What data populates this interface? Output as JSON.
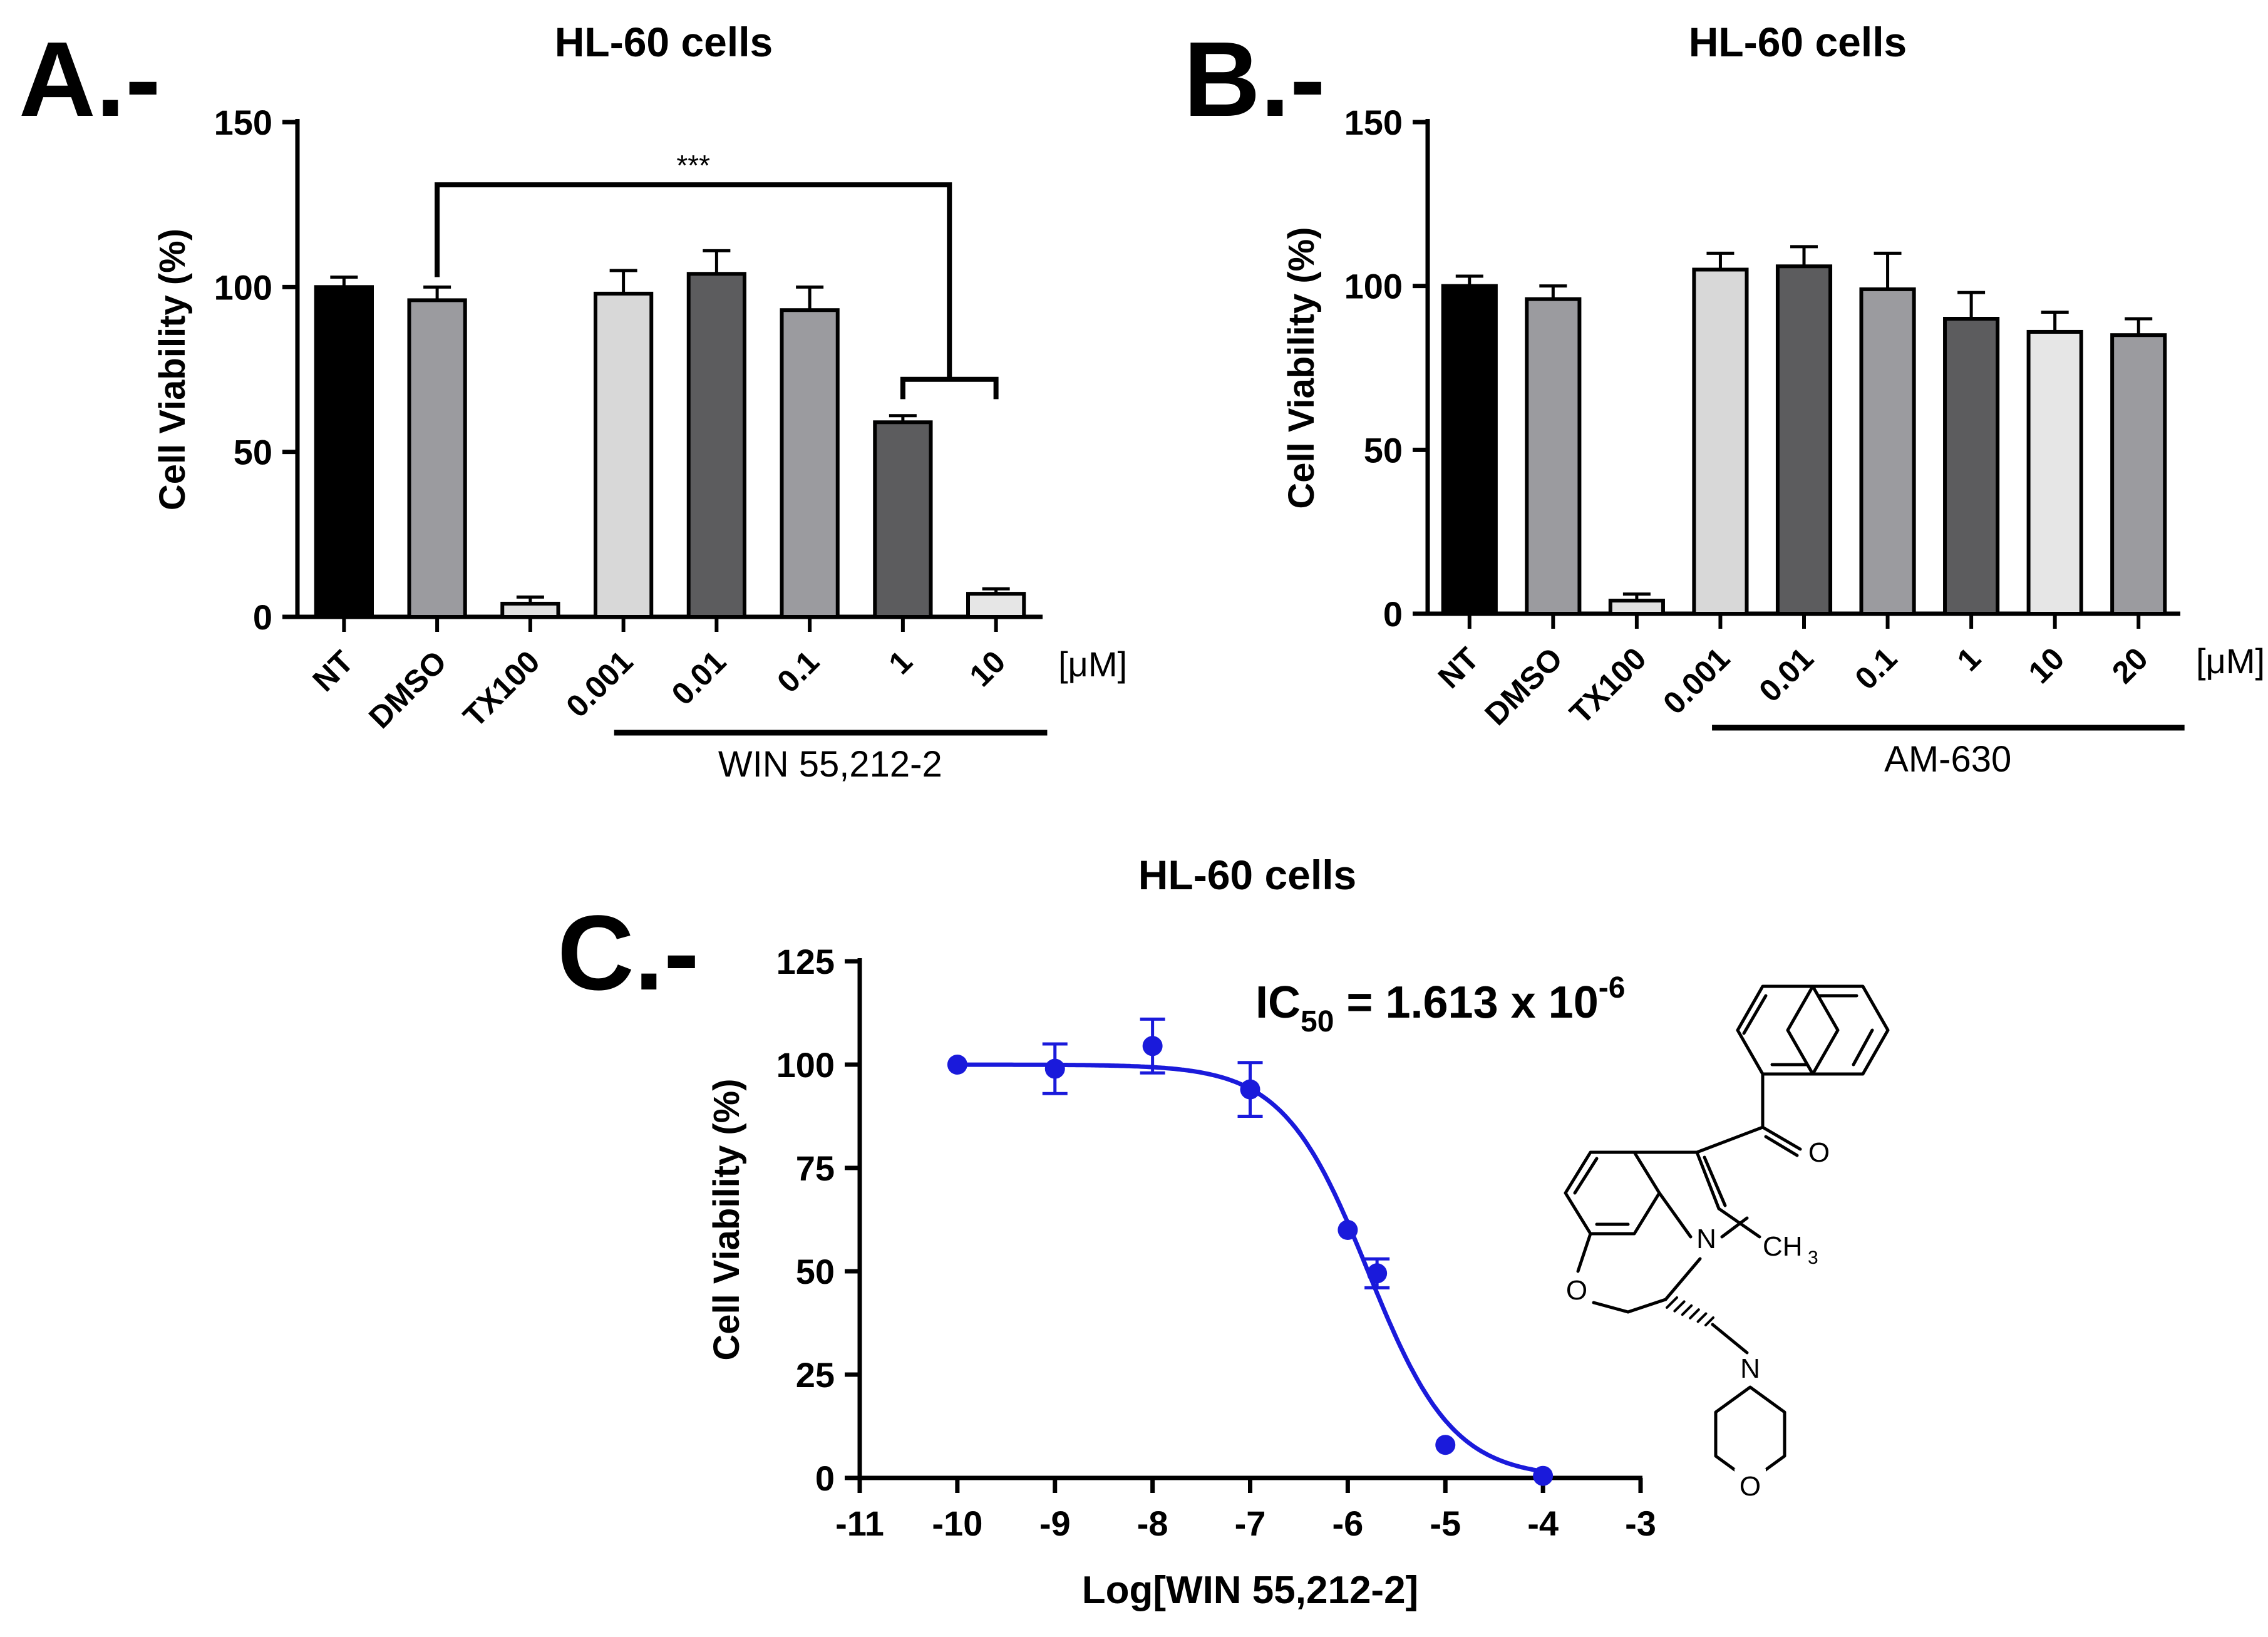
{
  "panel_labels": {
    "a": "A.-",
    "b": "B.-",
    "c": "C.-"
  },
  "colors": {
    "axis": "#000000",
    "bar_outline": "#000000",
    "curve": "#1a1adb",
    "structure": "#000000"
  },
  "annotations": {
    "a_significance": "***",
    "c_ic50_prefix": "IC",
    "c_ic50_subscript": "50",
    "c_ic50_value": " = 1.613 x 10",
    "c_ic50_exponent": "-6"
  },
  "structure_atoms": [
    "O",
    "N",
    "CH",
    "3",
    "O",
    "N",
    "O"
  ],
  "chart_data": [
    {
      "panel": "A",
      "type": "bar",
      "title": "HL-60 cells",
      "ylabel": "Cell Viability (%)",
      "ylim": [
        0,
        150
      ],
      "yticks": [
        0,
        50,
        100,
        150
      ],
      "categories": [
        "NT",
        "DMSO",
        "TX100",
        "0.001",
        "0.01",
        "0.1",
        "1",
        "10"
      ],
      "values": [
        100,
        96,
        4,
        98,
        104,
        93,
        59,
        7
      ],
      "errors": [
        3,
        4,
        2,
        7,
        7,
        7,
        2,
        1.5
      ],
      "bar_colors": [
        "#000000",
        "#9b9b9f",
        "#e0e0e0",
        "#d8d8d8",
        "#5c5c5e",
        "#9b9b9f",
        "#5c5c5e",
        "#e6e6e6"
      ],
      "group_label": "WIN 55,212-2",
      "group_span": [
        "0.001",
        "10"
      ],
      "unit": "[μM]",
      "significance": {
        "from": "DMSO",
        "to": [
          "1",
          "10"
        ],
        "label": "***"
      },
      "grid": false,
      "legend": "none"
    },
    {
      "panel": "B",
      "type": "bar",
      "title": "HL-60 cells",
      "ylabel": "Cell Viability (%)",
      "ylim": [
        0,
        150
      ],
      "yticks": [
        0,
        50,
        100,
        150
      ],
      "categories": [
        "NT",
        "DMSO",
        "TX100",
        "0.001",
        "0.01",
        "0.1",
        "1",
        "10",
        "20"
      ],
      "values": [
        100,
        96,
        4,
        105,
        106,
        99,
        90,
        86,
        85
      ],
      "errors": [
        3,
        4,
        2,
        5,
        6,
        11,
        8,
        6,
        5
      ],
      "bar_colors": [
        "#000000",
        "#9b9b9f",
        "#e0e0e0",
        "#d8d8d8",
        "#5c5c5e",
        "#9b9b9f",
        "#5c5c5e",
        "#e6e6e6",
        "#9b9b9f"
      ],
      "group_label": "AM-630",
      "group_span": [
        "0.001",
        "20"
      ],
      "unit": "[μM]",
      "grid": false,
      "legend": "none"
    },
    {
      "panel": "C",
      "type": "scatter",
      "title": "HL-60 cells",
      "xlabel": "Log[WIN 55,212-2]",
      "ylabel": "Cell Viability (%)",
      "xlim": [
        -11,
        -3
      ],
      "ylim": [
        0,
        125
      ],
      "xticks": [
        -11,
        -10,
        -9,
        -8,
        -7,
        -6,
        -5,
        -4,
        -3
      ],
      "yticks": [
        0,
        25,
        50,
        75,
        100,
        125
      ],
      "x": [
        -10,
        -9,
        -8,
        -7,
        -6,
        -5.7,
        -5,
        -4
      ],
      "y": [
        100,
        99,
        104.5,
        94,
        60,
        49.5,
        8,
        0.5
      ],
      "y_error": [
        0,
        6,
        6.5,
        6.5,
        0,
        3.5,
        0,
        0
      ],
      "fit": {
        "model": "sigmoidal dose-response",
        "top": 100,
        "bottom": 0,
        "log_ic50": -5.792,
        "hill_slope": -1
      },
      "grid": false,
      "legend": "none"
    }
  ]
}
